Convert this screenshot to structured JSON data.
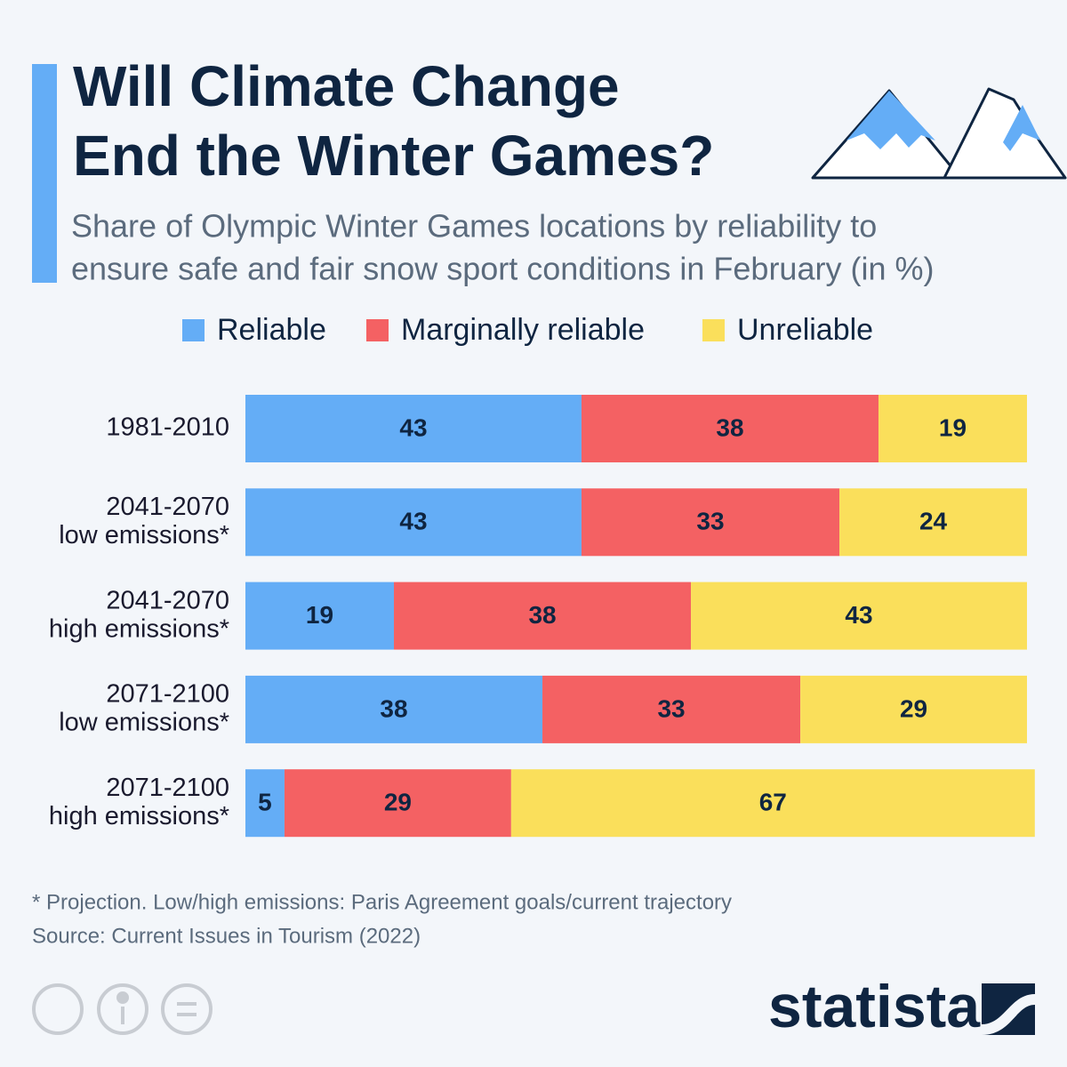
{
  "chart_data": {
    "type": "stacked-bar-horizontal",
    "title": [
      "Will Climate Change",
      "End the Winter Games?"
    ],
    "subtitle": [
      "Share of Olympic Winter Games locations by reliability to",
      "ensure safe and fair snow sport conditions in February (in %)"
    ],
    "categories": [
      [
        "1981-2010"
      ],
      [
        "2041-2070",
        "low emissions*"
      ],
      [
        "2041-2070",
        "high emissions*"
      ],
      [
        "2071-2100",
        "low emissions*"
      ],
      [
        "2071-2100",
        "high emissions*"
      ]
    ],
    "series": [
      {
        "name": "Reliable",
        "color": "#64adf6",
        "values": [
          43,
          43,
          19,
          38,
          5
        ]
      },
      {
        "name": "Marginally reliable",
        "color": "#f46163",
        "values": [
          38,
          33,
          38,
          33,
          29
        ]
      },
      {
        "name": "Unreliable",
        "color": "#fadf5b",
        "values": [
          19,
          24,
          43,
          29,
          67
        ]
      }
    ],
    "xlim": [
      0,
      100
    ],
    "footnote": "* Projection. Low/high emissions: Paris Agreement goals/current trajectory",
    "source": "Source: Current Issues in Tourism (2022)",
    "brand": "statista"
  }
}
